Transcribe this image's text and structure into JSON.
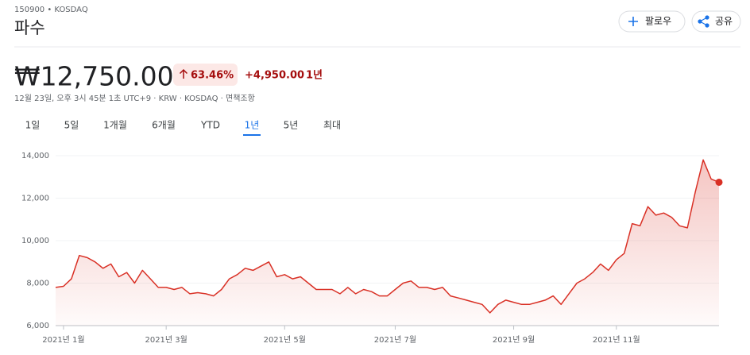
{
  "header": {
    "ticker": "150900 • KOSDAQ",
    "name": "파수",
    "follow": "팔로우",
    "share": "공유"
  },
  "quote": {
    "price": "₩12,750.00",
    "change_pct": "63.46%",
    "change_abs": "+4,950.00",
    "period": "1년",
    "meta": "12월 23일, 오후 3시 45분 1초 UTC+9 · KRW · KOSDAQ · 면책조항"
  },
  "tabs": {
    "items": [
      "1일",
      "5일",
      "1개월",
      "6개월",
      "YTD",
      "1년",
      "5년",
      "최대"
    ],
    "selected": 5
  },
  "chart_data": {
    "type": "line",
    "color": "#d93025",
    "grid": true,
    "categories": [
      null,
      "2021년 1월",
      null,
      null,
      null,
      null,
      null,
      null,
      null,
      null,
      null,
      null,
      null,
      null,
      "2021년 3월",
      null,
      null,
      null,
      null,
      null,
      null,
      null,
      null,
      null,
      null,
      null,
      null,
      null,
      null,
      "2021년 5월",
      null,
      null,
      null,
      null,
      null,
      null,
      null,
      null,
      null,
      null,
      null,
      null,
      null,
      "2021년 7월",
      null,
      null,
      null,
      null,
      null,
      null,
      null,
      null,
      null,
      null,
      null,
      null,
      null,
      null,
      "2021년 9월",
      null,
      null,
      null,
      null,
      null,
      null,
      null,
      null,
      null,
      null,
      null,
      null,
      "2021년 11월",
      null,
      null,
      null,
      null,
      null,
      null,
      null,
      null,
      null,
      null,
      null,
      null,
      null
    ],
    "values": [
      7800,
      7850,
      8200,
      9300,
      9200,
      9000,
      8700,
      8900,
      8300,
      8500,
      8000,
      8600,
      8200,
      7800,
      7800,
      7700,
      7800,
      7500,
      7550,
      7500,
      7400,
      7700,
      8200,
      8400,
      8700,
      8600,
      8800,
      9000,
      8300,
      8400,
      8200,
      8300,
      8000,
      7700,
      7700,
      7700,
      7500,
      7800,
      7500,
      7700,
      7600,
      7400,
      7400,
      7700,
      8000,
      8100,
      7800,
      7800,
      7700,
      7800,
      7400,
      7300,
      7200,
      7100,
      7000,
      6600,
      7000,
      7200,
      7100,
      7000,
      7000,
      7100,
      7200,
      7400,
      7000,
      7500,
      8000,
      8200,
      8500,
      8900,
      8600,
      9100,
      9400,
      10800,
      10700,
      11600,
      11200,
      11300,
      11100,
      10700,
      10600,
      12300,
      13800,
      12900,
      12750
    ],
    "ylim": [
      6000,
      14000
    ],
    "yticks": [
      {
        "value": 6000,
        "label": "6,000"
      },
      {
        "value": 8000,
        "label": "8,000"
      },
      {
        "value": 10000,
        "label": "10,000"
      },
      {
        "value": 12000,
        "label": "12,000"
      },
      {
        "value": 14000,
        "label": "14,000"
      }
    ]
  }
}
